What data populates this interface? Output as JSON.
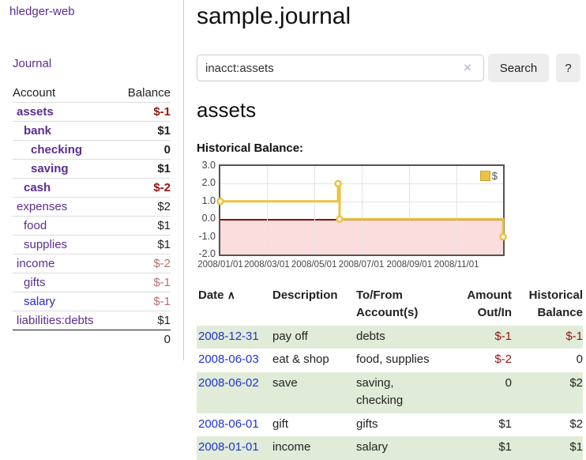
{
  "sidebar": {
    "brand": "hledger-web",
    "journal_link": "Journal",
    "accounts_table": {
      "account_header": "Account",
      "balance_header": "Balance",
      "rows": [
        {
          "name": "assets",
          "balance": "$-1",
          "depth": 1,
          "bold": true,
          "balance_tone": "neg-strong",
          "link_color": "purple"
        },
        {
          "name": "bank",
          "balance": "$1",
          "depth": 2,
          "bold": true,
          "balance_tone": "",
          "link_color": "purple"
        },
        {
          "name": "checking",
          "balance": "0",
          "depth": 3,
          "bold": true,
          "balance_tone": "",
          "link_color": "purple"
        },
        {
          "name": "saving",
          "balance": "$1",
          "depth": 3,
          "bold": true,
          "balance_tone": "",
          "link_color": "purple"
        },
        {
          "name": "cash",
          "balance": "$-2",
          "depth": 2,
          "bold": true,
          "balance_tone": "neg-strong",
          "link_color": "purple"
        },
        {
          "name": "expenses",
          "balance": "$2",
          "depth": 1,
          "bold": false,
          "balance_tone": "",
          "link_color": "purple"
        },
        {
          "name": "food",
          "balance": "$1",
          "depth": 2,
          "bold": false,
          "balance_tone": "",
          "link_color": "purple"
        },
        {
          "name": "supplies",
          "balance": "$1",
          "depth": 2,
          "bold": false,
          "balance_tone": "",
          "link_color": "purple"
        },
        {
          "name": "income",
          "balance": "$-2",
          "depth": 1,
          "bold": false,
          "balance_tone": "neg-soft",
          "link_color": "purple"
        },
        {
          "name": "gifts",
          "balance": "$-1",
          "depth": 2,
          "bold": false,
          "balance_tone": "neg-soft",
          "link_color": "purple"
        },
        {
          "name": "salary",
          "balance": "$-1",
          "depth": 2,
          "bold": false,
          "balance_tone": "neg-soft",
          "link_color": "blue"
        },
        {
          "name": "liabilities:debts",
          "balance": "$1",
          "depth": 1,
          "bold": false,
          "balance_tone": "",
          "link_color": "purple"
        }
      ],
      "total": "0"
    }
  },
  "main": {
    "title": "sample.journal",
    "search": {
      "value": "inacct:assets",
      "clear_icon": "×",
      "search_button": "Search",
      "help_button": "?"
    },
    "account_heading": "assets",
    "chart_heading": "Historical Balance:"
  },
  "chart_data": {
    "type": "line",
    "step": true,
    "title": "Historical Balance of assets",
    "x_start": "2008-01-01",
    "x_end": "2008-12-31",
    "ylim": [
      -2,
      3
    ],
    "y_ticks": [
      3.0,
      2.0,
      1.0,
      0.0,
      -1.0,
      -2.0
    ],
    "y_tick_labels": [
      "3.0",
      "2.0",
      "1.0",
      "0.0",
      "-1.0",
      "-2.0"
    ],
    "x_ticks": [
      "2008-01-01",
      "2008-03-01",
      "2008-05-01",
      "2008-07-01",
      "2008-09-01",
      "2008-11-01"
    ],
    "x_tick_labels": [
      "2008/01/01",
      "2008/03/01",
      "2008/05/01",
      "2008/07/01",
      "2008/09/01",
      "2008/11/01"
    ],
    "grid": true,
    "negative_region_shaded": true,
    "legend_position": "top-right",
    "series": [
      {
        "name": "$",
        "color": "#edc240",
        "points": [
          [
            "2008-01-01",
            1
          ],
          [
            "2008-06-01",
            2
          ],
          [
            "2008-06-03",
            0
          ],
          [
            "2008-12-31",
            -1
          ]
        ]
      }
    ]
  },
  "register_table": {
    "sort_icon": "∧",
    "headers": {
      "date": "Date",
      "description": "Description",
      "to_from": "To/From Account(s)",
      "amount": "Amount Out/In",
      "balance": "Historical Balance"
    },
    "rows": [
      {
        "date": "2008-12-31",
        "description": "pay off",
        "to_from": "debts",
        "amount": "$-1",
        "amount_neg": true,
        "balance": "$-1",
        "balance_neg": true
      },
      {
        "date": "2008-06-03",
        "description": "eat & shop",
        "to_from": "food, supplies",
        "amount": "$-2",
        "amount_neg": true,
        "balance": "0",
        "balance_neg": false
      },
      {
        "date": "2008-06-02",
        "description": "save",
        "to_from": "saving,\nchecking",
        "amount": "0",
        "amount_neg": false,
        "balance": "$2",
        "balance_neg": false
      },
      {
        "date": "2008-06-01",
        "description": "gift",
        "to_from": "gifts",
        "amount": "$1",
        "amount_neg": false,
        "balance": "$2",
        "balance_neg": false
      },
      {
        "date": "2008-01-01",
        "description": "income",
        "to_from": "salary",
        "amount": "$1",
        "amount_neg": false,
        "balance": "$1",
        "balance_neg": false
      }
    ]
  },
  "colors": {
    "link_purple": "#5b2d91",
    "link_blue": "#2a2ad0",
    "negative_strong": "#971414",
    "negative_soft": "#bf6b6f",
    "row_green": "#e0ecd8",
    "chart_line_gold": "#edc240",
    "negative_region_pink": "#fbdddd",
    "zero_line_red": "#8f0606"
  }
}
